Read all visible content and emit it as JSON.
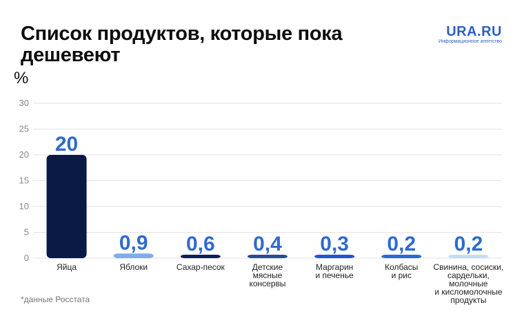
{
  "title": "Список продуктов, которые пока дешевеют",
  "brand": {
    "name": "URA.RU",
    "subtitle": "Информационное агентство",
    "color": "#2b5fc4"
  },
  "unit_label": "%",
  "footnote": "*данные Росстата",
  "chart_data": {
    "type": "bar",
    "title": "Список продуктов, которые пока дешевеют",
    "ylabel": "%",
    "ylim": [
      0,
      30
    ],
    "yticks": [
      0,
      5,
      10,
      15,
      20,
      25,
      30
    ],
    "grid": true,
    "categories": [
      [
        "Яйца"
      ],
      [
        "Яблоки"
      ],
      [
        "Сахар-песок"
      ],
      [
        "Детские",
        "мясные",
        "консервы"
      ],
      [
        "Маргарин",
        "и печенье"
      ],
      [
        "Колбасы",
        "и рис"
      ],
      [
        "Свинина, сосиски,",
        "сардельки,",
        "молочные",
        "и кисломолочные",
        "продукты"
      ]
    ],
    "values": [
      20,
      0.9,
      0.6,
      0.4,
      0.3,
      0.2,
      0.2
    ],
    "value_labels": [
      "20",
      "0,9",
      "0,6",
      "0,4",
      "0,3",
      "0,2",
      "0,2"
    ],
    "bar_colors": [
      "#0b1a45",
      "#7eaeea",
      "#0e1f5c",
      "#2a4a96",
      "#1f56cc",
      "#2a6ad6",
      "#c6dcf6"
    ],
    "value_label_color": "#2f6ad0"
  }
}
